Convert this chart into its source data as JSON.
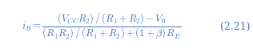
{
  "numerator": "$(V_{CC}R_2)/(R_1 + R_2) - V_0$",
  "denominator": "$(R_1R_2)/(R_1 + R_2) + (1 + \\beta)R_E$",
  "label": "(2.21)",
  "bg_color": "#ffffff",
  "text_color": "#4472c4",
  "fontsize_main": 9.0,
  "fontsize_label": 9.0,
  "fig_width": 3.16,
  "fig_height": 0.66,
  "dpi": 100
}
